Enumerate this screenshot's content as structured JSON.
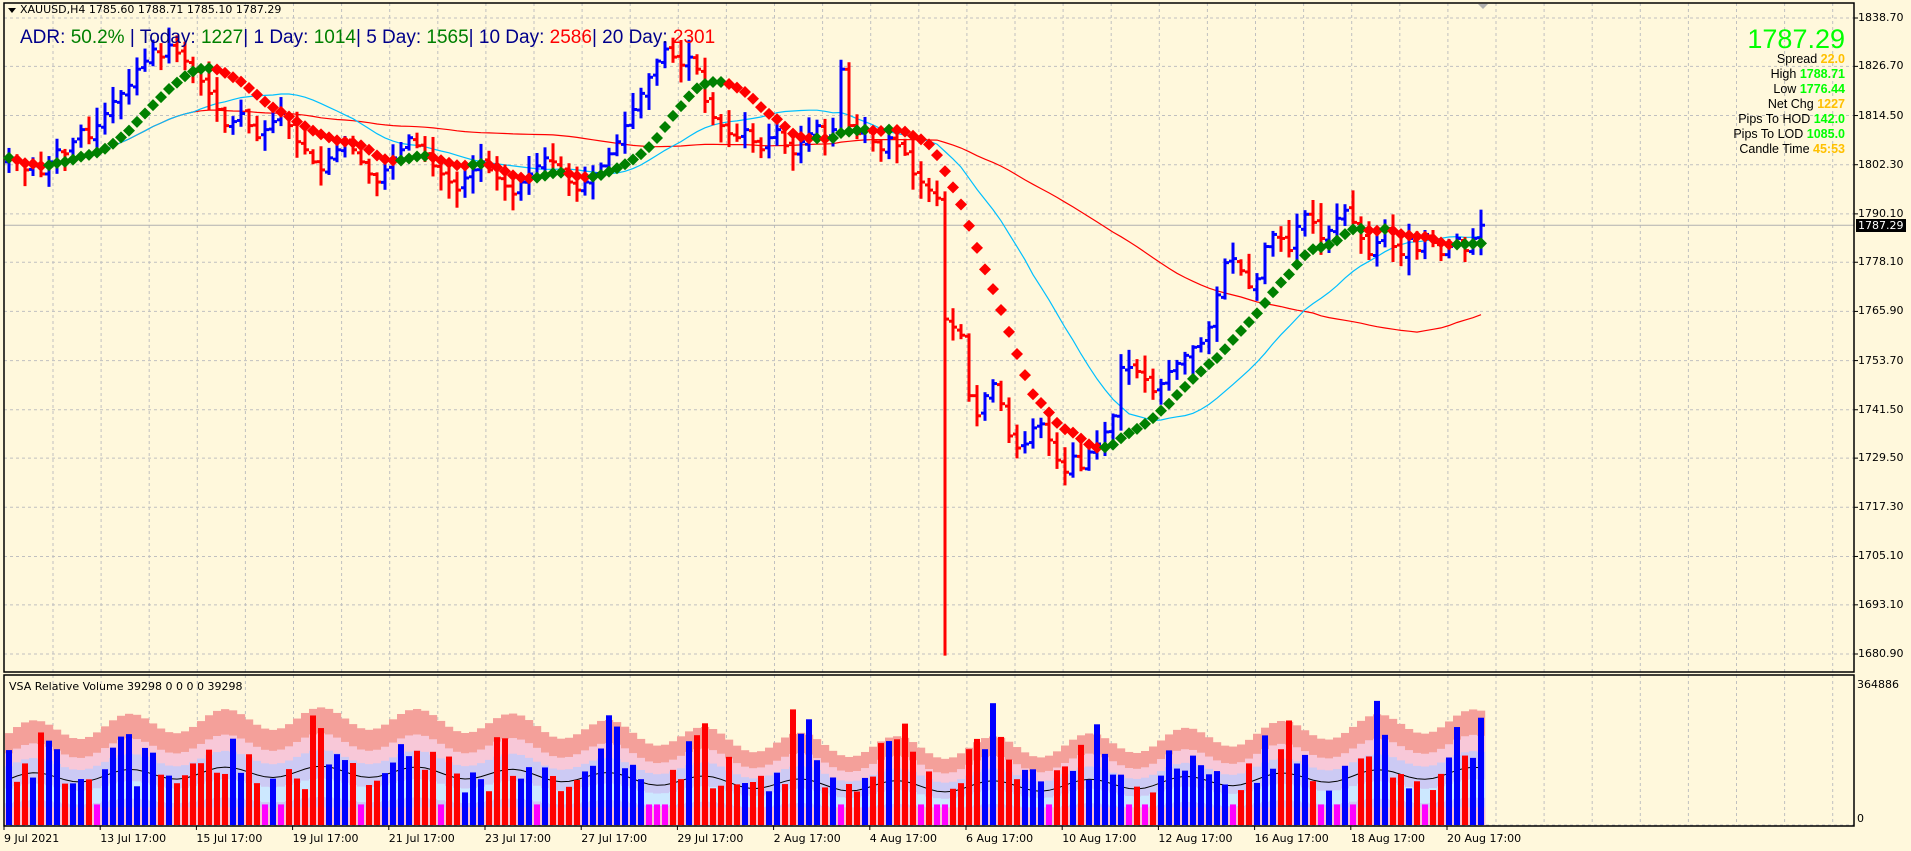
{
  "header": {
    "symbol_line": "XAUUSD,H4  1785.60 1788.71 1785.10 1787.29",
    "symbol": "XAUUSD",
    "timeframe": "H4",
    "open": "1785.60",
    "high": "1788.71",
    "low": "1785.10",
    "close": "1787.29"
  },
  "adr": {
    "adr_label": "ADR: ",
    "adr_value": "50.2%",
    "sep1": "  |  ",
    "today_label": "Today: ",
    "today_value": "1227",
    "sep2": "|  ",
    "d1_label": "1 Day: ",
    "d1_value": "1014",
    "sep3": "|  ",
    "d5_label": "5 Day: ",
    "d5_value": "1565",
    "sep4": "|  ",
    "d10_label": "10 Day: ",
    "d10_value": "2586",
    "sep5": "|  ",
    "d20_label": "20 Day: ",
    "d20_value": "2301"
  },
  "info_panel": {
    "price": "1787.29",
    "rows": [
      {
        "label": "Spread",
        "value": "22.0",
        "color": "#ffc000"
      },
      {
        "label": "High",
        "value": "1788.71",
        "color": "#00ff00"
      },
      {
        "label": "Low",
        "value": "1776.44",
        "color": "#00ff00"
      },
      {
        "label": "Net Chg",
        "value": "1227",
        "color": "#ffc000"
      },
      {
        "label": "Pips To HOD",
        "value": "142.0",
        "color": "#00ff00"
      },
      {
        "label": "Pips To LOD",
        "value": "1085.0",
        "color": "#00ff00"
      },
      {
        "label": "Candle Time",
        "value": "45:53",
        "color": "#ffc000"
      }
    ]
  },
  "price_axis": {
    "labels": [
      "1838.70",
      "1826.70",
      "1814.50",
      "1802.30",
      "1790.10",
      "1778.10",
      "1765.90",
      "1753.70",
      "1741.50",
      "1729.50",
      "1717.30",
      "1705.10",
      "1693.10",
      "1680.90"
    ],
    "current_price": "1787.29"
  },
  "volume_panel": {
    "title": "VSA Relative Volume 39298 0 0 0 0 39298",
    "axis_max": "364886",
    "axis_min": "0"
  },
  "time_axis": {
    "labels": [
      "9 Jul 2021",
      "13 Jul 17:00",
      "15 Jul 17:00",
      "19 Jul 17:00",
      "21 Jul 17:00",
      "23 Jul 17:00",
      "27 Jul 17:00",
      "29 Jul 17:00",
      "2 Aug 17:00",
      "4 Aug 17:00",
      "6 Aug 17:00",
      "10 Aug 17:00",
      "12 Aug 17:00",
      "16 Aug 17:00",
      "18 Aug 17:00",
      "20 Aug 17:00"
    ]
  },
  "colors": {
    "background": "#fff8dc",
    "grid": "#c0c0c0",
    "bull_bar": "#0000ff",
    "bear_bar": "#ff0000",
    "ma_slow": "#ff0000",
    "ma_fast": "#00bfff",
    "trend_up": "#008000",
    "trend_down": "#ff0000"
  },
  "chart_data": {
    "type": "ohlc",
    "title": "XAUUSD,H4",
    "ylim": [
      1677,
      1842
    ],
    "closes": [
      1804,
      1803,
      1801,
      1802,
      1800,
      1803,
      1806,
      1805,
      1808,
      1811,
      1809,
      1812,
      1815,
      1818,
      1820,
      1822,
      1826,
      1828,
      1831,
      1829,
      1832,
      1830,
      1828,
      1826,
      1823,
      1820,
      1816,
      1812,
      1813,
      1815,
      1812,
      1809,
      1811,
      1813,
      1815,
      1812,
      1808,
      1806,
      1803,
      1801,
      1804,
      1806,
      1808,
      1806,
      1803,
      1800,
      1798,
      1801,
      1804,
      1806,
      1809,
      1807,
      1805,
      1802,
      1800,
      1798,
      1796,
      1799,
      1801,
      1803,
      1801,
      1799,
      1797,
      1795,
      1798,
      1800,
      1802,
      1804,
      1803,
      1801,
      1798,
      1796,
      1798,
      1800,
      1802,
      1805,
      1808,
      1812,
      1816,
      1820,
      1824,
      1828,
      1831,
      1829,
      1827,
      1829,
      1826,
      1818,
      1814,
      1812,
      1810,
      1809,
      1811,
      1808,
      1806,
      1809,
      1811,
      1807,
      1805,
      1808,
      1810,
      1812,
      1809,
      1811,
      1826,
      1812,
      1810,
      1811,
      1808,
      1806,
      1809,
      1807,
      1805,
      1800,
      1798,
      1796,
      1794,
      1764,
      1762,
      1760,
      1745,
      1740,
      1745,
      1748,
      1743,
      1735,
      1732,
      1733,
      1737,
      1738,
      1734,
      1729,
      1726,
      1730,
      1727,
      1731,
      1733,
      1736,
      1740,
      1752,
      1752,
      1751,
      1749,
      1746,
      1748,
      1751,
      1753,
      1755,
      1757,
      1758,
      1762,
      1770,
      1778,
      1779,
      1776,
      1772,
      1774,
      1782,
      1785,
      1784,
      1781,
      1787,
      1790,
      1788,
      1784,
      1786,
      1789,
      1791,
      1788,
      1784,
      1780,
      1783,
      1786,
      1782,
      1780,
      1784,
      1781,
      1785,
      1783,
      1780,
      1782,
      1784,
      1781,
      1784,
      1787.29
    ]
  }
}
